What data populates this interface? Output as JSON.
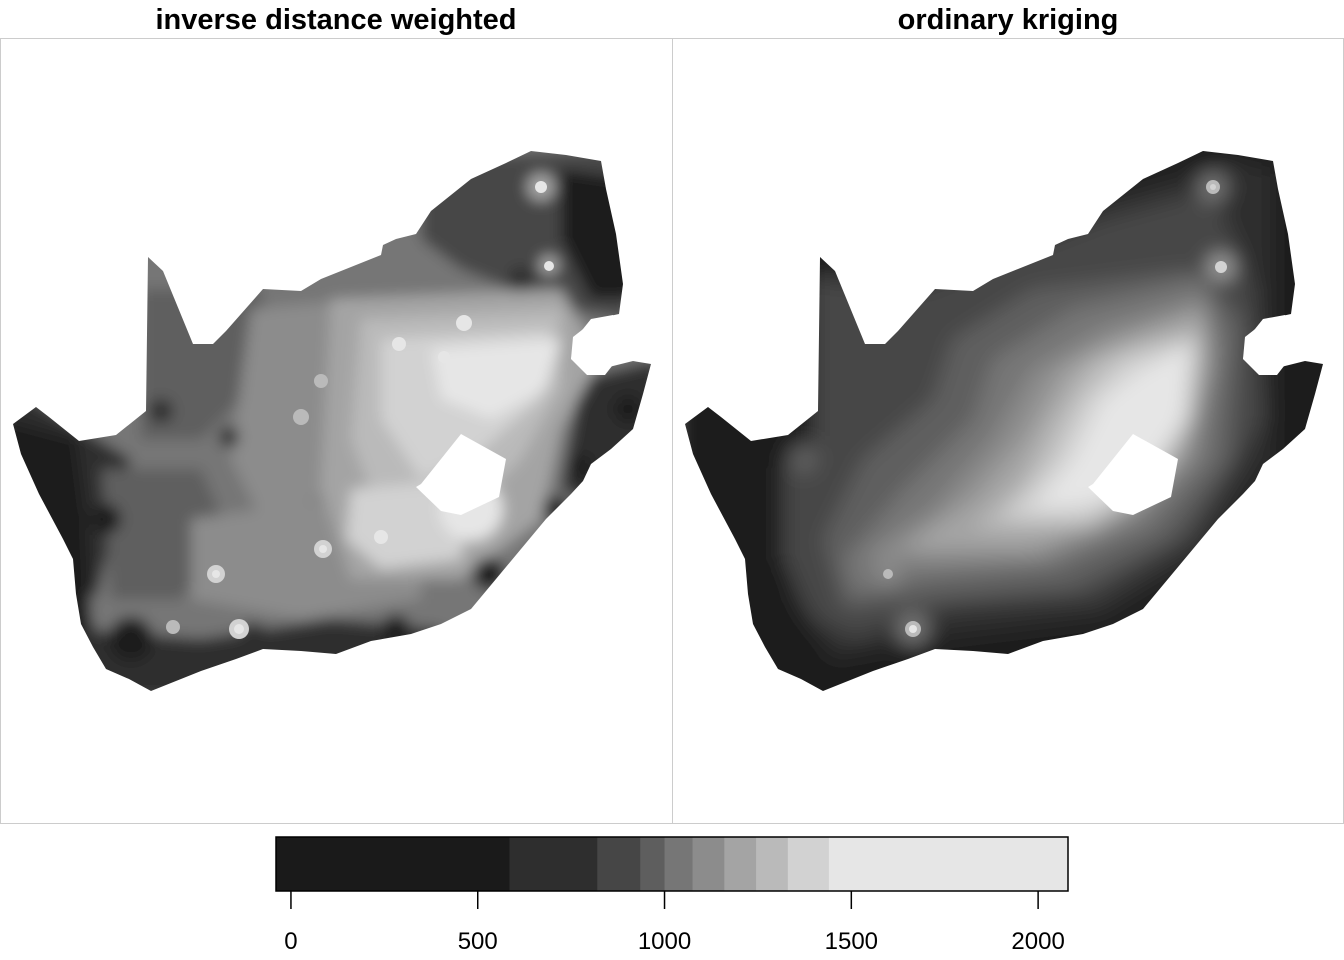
{
  "panels": {
    "left_title": "inverse distance weighted",
    "right_title": "ordinary kriging"
  },
  "colorkey": {
    "min": -40,
    "max": 2080,
    "breaks": [
      -40,
      585,
      820,
      935,
      1000,
      1075,
      1160,
      1245,
      1330,
      1440,
      2080
    ],
    "colors": [
      "#1a1a1a",
      "#2e2e2e",
      "#464646",
      "#5e5e5e",
      "#767676",
      "#8c8c8c",
      "#a4a4a4",
      "#bababa",
      "#d2d2d2",
      "#e6e6e6"
    ],
    "ticks": [
      {
        "value": 0,
        "label": "0"
      },
      {
        "value": 500,
        "label": "500"
      },
      {
        "value": 1000,
        "label": "1000"
      },
      {
        "value": 1500,
        "label": "1500"
      },
      {
        "value": 2000,
        "label": "2000"
      }
    ]
  },
  "colors": {
    "panel_border": "#cccccc",
    "key_border": "#000000",
    "background": "#ffffff"
  }
}
